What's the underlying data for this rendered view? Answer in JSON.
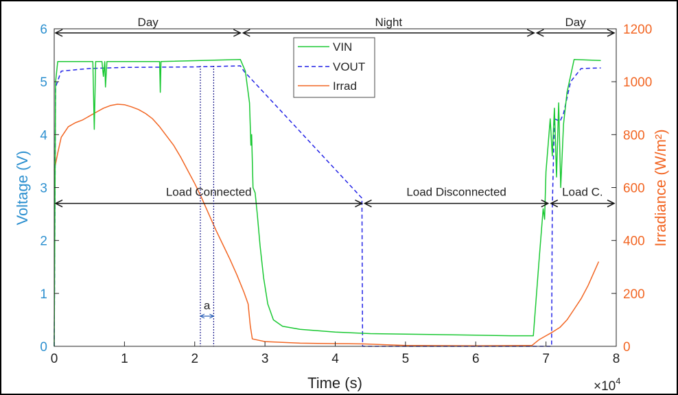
{
  "chart_data": {
    "type": "line",
    "xlabel": "Time (s)",
    "x_multiplier": "×10",
    "x_multiplier_exp": "4",
    "xlim": [
      0,
      8
    ],
    "xticks": [
      "0",
      "1",
      "2",
      "3",
      "4",
      "5",
      "6",
      "7",
      "8"
    ],
    "ylabel_left": "Voltage (V)",
    "ylim_left": [
      0,
      6
    ],
    "yticks_left": [
      "0",
      "1",
      "2",
      "3",
      "4",
      "5",
      "6"
    ],
    "ylabel_right": "Irradiance (W/m²)",
    "ylim_right": [
      0,
      1200
    ],
    "yticks_right": [
      "0",
      "200",
      "400",
      "600",
      "800",
      "1000",
      "1200"
    ],
    "grid": false,
    "legend_position": "top-center",
    "colors": {
      "VIN": "#19c832",
      "VOUT": "#2222e6",
      "Irrad": "#f26522",
      "left_axis": "#2b8fcf",
      "right_axis": "#f26522"
    },
    "series": [
      {
        "name": "VIN",
        "axis": "left",
        "style": "solid",
        "points": [
          [
            0,
            0
          ],
          [
            0.02,
            5.0
          ],
          [
            0.05,
            5.38
          ],
          [
            0.55,
            5.38
          ],
          [
            0.57,
            4.1
          ],
          [
            0.59,
            5.38
          ],
          [
            0.68,
            5.38
          ],
          [
            0.7,
            5.1
          ],
          [
            0.72,
            5.38
          ],
          [
            0.73,
            4.9
          ],
          [
            0.75,
            5.38
          ],
          [
            1.5,
            5.38
          ],
          [
            1.51,
            4.8
          ],
          [
            1.52,
            5.38
          ],
          [
            2.65,
            5.42
          ],
          [
            2.72,
            5.2
          ],
          [
            2.78,
            4.6
          ],
          [
            2.8,
            3.8
          ],
          [
            2.81,
            4.0
          ],
          [
            2.83,
            3.0
          ],
          [
            2.86,
            2.9
          ],
          [
            2.89,
            2.5
          ],
          [
            2.93,
            1.9
          ],
          [
            2.98,
            1.3
          ],
          [
            3.04,
            0.8
          ],
          [
            3.12,
            0.5
          ],
          [
            3.25,
            0.38
          ],
          [
            3.5,
            0.32
          ],
          [
            4.0,
            0.27
          ],
          [
            4.5,
            0.24
          ],
          [
            5.0,
            0.23
          ],
          [
            5.5,
            0.22
          ],
          [
            6.0,
            0.21
          ],
          [
            6.5,
            0.2
          ],
          [
            6.82,
            0.2
          ],
          [
            6.9,
            1.6
          ],
          [
            6.96,
            2.6
          ],
          [
            6.98,
            2.4
          ],
          [
            7.0,
            3.3
          ],
          [
            7.06,
            4.3
          ],
          [
            7.09,
            3.6
          ],
          [
            7.12,
            4.5
          ],
          [
            7.15,
            3.2
          ],
          [
            7.18,
            4.6
          ],
          [
            7.21,
            3.0
          ],
          [
            7.25,
            4.2
          ],
          [
            7.3,
            4.8
          ],
          [
            7.4,
            5.42
          ],
          [
            7.78,
            5.4
          ]
        ]
      },
      {
        "name": "VOUT",
        "axis": "left",
        "style": "dashed",
        "points": [
          [
            0,
            0
          ],
          [
            0.02,
            4.9
          ],
          [
            0.1,
            5.2
          ],
          [
            0.5,
            5.25
          ],
          [
            1.0,
            5.27
          ],
          [
            2.0,
            5.28
          ],
          [
            2.65,
            5.3
          ],
          [
            2.7,
            5.2
          ],
          [
            4.38,
            2.8
          ],
          [
            4.39,
            0.0
          ],
          [
            7.08,
            0.0
          ],
          [
            7.09,
            2.6
          ],
          [
            7.12,
            4.3
          ],
          [
            7.2,
            4.25
          ],
          [
            7.25,
            4.4
          ],
          [
            7.35,
            5.0
          ],
          [
            7.5,
            5.25
          ],
          [
            7.78,
            5.26
          ]
        ]
      },
      {
        "name": "Irrad",
        "axis": "right",
        "style": "solid",
        "points": [
          [
            0,
            665
          ],
          [
            0.02,
            690
          ],
          [
            0.05,
            730
          ],
          [
            0.1,
            790
          ],
          [
            0.2,
            830
          ],
          [
            0.3,
            845
          ],
          [
            0.4,
            855
          ],
          [
            0.5,
            870
          ],
          [
            0.6,
            885
          ],
          [
            0.7,
            900
          ],
          [
            0.8,
            910
          ],
          [
            0.9,
            915
          ],
          [
            1.0,
            913
          ],
          [
            1.1,
            905
          ],
          [
            1.2,
            895
          ],
          [
            1.3,
            880
          ],
          [
            1.4,
            860
          ],
          [
            1.5,
            830
          ],
          [
            1.6,
            795
          ],
          [
            1.7,
            760
          ],
          [
            1.8,
            715
          ],
          [
            1.9,
            665
          ],
          [
            2.0,
            615
          ],
          [
            2.1,
            560
          ],
          [
            2.2,
            500
          ],
          [
            2.3,
            440
          ],
          [
            2.4,
            385
          ],
          [
            2.5,
            330
          ],
          [
            2.6,
            270
          ],
          [
            2.7,
            205
          ],
          [
            2.76,
            160
          ],
          [
            2.79,
            80
          ],
          [
            2.82,
            28
          ],
          [
            3.0,
            18
          ],
          [
            3.5,
            12
          ],
          [
            4.0,
            10
          ],
          [
            4.4,
            9
          ],
          [
            5.0,
            3
          ],
          [
            6.0,
            2
          ],
          [
            6.8,
            3
          ],
          [
            6.9,
            25
          ],
          [
            7.0,
            40
          ],
          [
            7.1,
            55
          ],
          [
            7.2,
            72
          ],
          [
            7.3,
            100
          ],
          [
            7.4,
            140
          ],
          [
            7.5,
            180
          ],
          [
            7.6,
            230
          ],
          [
            7.7,
            290
          ],
          [
            7.75,
            320
          ]
        ]
      }
    ],
    "annotations": {
      "top_regions": [
        {
          "label": "Day",
          "x_start": 0,
          "x_end": 2.67
        },
        {
          "label": "Night",
          "x_start": 2.67,
          "x_end": 6.85
        },
        {
          "label": "Day",
          "x_start": 6.85,
          "x_end": 8
        }
      ],
      "load_regions": [
        {
          "label": "Load Connected",
          "x_start": 0,
          "x_end": 4.4
        },
        {
          "label": "Load Disconnected",
          "x_start": 4.4,
          "x_end": 7.05
        },
        {
          "label": "Load C.",
          "x_start": 7.05,
          "x_end": 8
        }
      ],
      "interval_marker": {
        "label": "a",
        "x_start": 2.08,
        "x_end": 2.27
      }
    }
  }
}
